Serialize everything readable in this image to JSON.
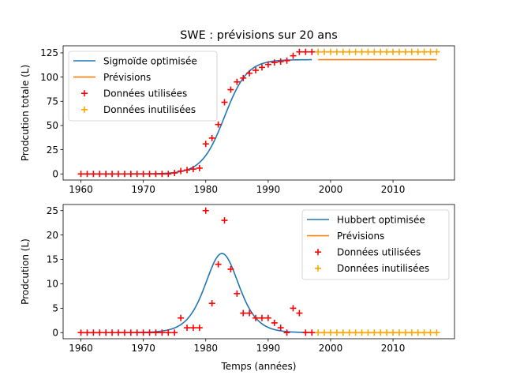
{
  "figure": {
    "title": "SWE : prévisions sur 20 ans",
    "xlabel": "Temps (années)"
  },
  "colors": {
    "fit": "#1f77b4",
    "forecast": "#ff7f0e",
    "used": "#ff0000",
    "unused": "#ffa500"
  },
  "chart_data": [
    {
      "type": "line",
      "id": "cumulative",
      "ylabel": "Prodcution totale (L)",
      "xlim": [
        1957.15,
        2019.85
      ],
      "ylim": [
        -6.3,
        132.3
      ],
      "xticks": [
        1960,
        1970,
        1980,
        1990,
        2000,
        2010
      ],
      "yticks": [
        0,
        25,
        50,
        75,
        100,
        125
      ],
      "legend_position": "upper left",
      "legend": [
        "Sigmoïde optimisée",
        "Prévisions",
        "Données utilisées",
        "Données inutilisées"
      ],
      "fit_model": {
        "type": "logistic",
        "K": 118,
        "t0": 1983,
        "k": 0.55
      },
      "fit_range": [
        1960,
        1997
      ],
      "forecast": {
        "x_range": [
          1998,
          2017
        ],
        "value": 118
      },
      "used_data": {
        "x": [
          1960,
          1961,
          1962,
          1963,
          1964,
          1965,
          1966,
          1967,
          1968,
          1969,
          1970,
          1971,
          1972,
          1973,
          1974,
          1975,
          1976,
          1977,
          1978,
          1979,
          1980,
          1981,
          1982,
          1983,
          1984,
          1985,
          1986,
          1987,
          1988,
          1989,
          1990,
          1991,
          1992,
          1993,
          1994,
          1995,
          1996,
          1997
        ],
        "y": [
          0,
          0,
          0,
          0,
          0,
          0,
          0,
          0,
          0,
          0,
          0,
          0,
          0,
          0,
          0,
          1,
          3,
          4,
          5,
          6,
          31,
          37,
          51,
          74,
          87,
          95,
          99,
          104,
          107,
          110,
          113,
          115,
          116,
          117,
          122,
          126,
          126,
          126
        ]
      },
      "unused_data": {
        "x": [
          1998,
          1999,
          2000,
          2001,
          2002,
          2003,
          2004,
          2005,
          2006,
          2007,
          2008,
          2009,
          2010,
          2011,
          2012,
          2013,
          2014,
          2015,
          2016,
          2017
        ],
        "y": [
          126,
          126,
          126,
          126,
          126,
          126,
          126,
          126,
          126,
          126,
          126,
          126,
          126,
          126,
          126,
          126,
          126,
          126,
          126,
          126
        ]
      }
    },
    {
      "type": "line",
      "id": "annual",
      "ylabel": "Prodcution (L)",
      "xlim": [
        1957.15,
        2019.85
      ],
      "ylim": [
        -1.25,
        26.25
      ],
      "xticks": [
        1960,
        1970,
        1980,
        1990,
        2000,
        2010
      ],
      "yticks": [
        0,
        5,
        10,
        15,
        20,
        25
      ],
      "legend_position": "upper right",
      "legend": [
        "Hubbert optimisée",
        "Prévisions",
        "Données utilisées",
        "Données inutilisées"
      ],
      "fit_model": {
        "type": "hubbert",
        "K": 118,
        "t0": 1982.6,
        "k": 0.55
      },
      "fit_range": [
        1960,
        1997
      ],
      "forecast": {
        "x_range": [
          1998,
          2017
        ],
        "value": 0
      },
      "used_data": {
        "x": [
          1960,
          1961,
          1962,
          1963,
          1964,
          1965,
          1966,
          1967,
          1968,
          1969,
          1970,
          1971,
          1972,
          1973,
          1974,
          1975,
          1976,
          1977,
          1978,
          1979,
          1980,
          1981,
          1982,
          1983,
          1984,
          1985,
          1986,
          1987,
          1988,
          1989,
          1990,
          1991,
          1992,
          1993,
          1994,
          1995,
          1996,
          1997
        ],
        "y": [
          0,
          0,
          0,
          0,
          0,
          0,
          0,
          0,
          0,
          0,
          0,
          0,
          0,
          0,
          0,
          0,
          3,
          1,
          1,
          1,
          25,
          6,
          14,
          23,
          13,
          8,
          4,
          4,
          3,
          3,
          3,
          2,
          1,
          0,
          5,
          4,
          0,
          0
        ]
      },
      "unused_data": {
        "x": [
          1998,
          1999,
          2000,
          2001,
          2002,
          2003,
          2004,
          2005,
          2006,
          2007,
          2008,
          2009,
          2010,
          2011,
          2012,
          2013,
          2014,
          2015,
          2016,
          2017
        ],
        "y": [
          0,
          0,
          0,
          0,
          0,
          0,
          0,
          0,
          0,
          0,
          0,
          0,
          0,
          0,
          0,
          0,
          0,
          0,
          0,
          0
        ]
      }
    }
  ]
}
